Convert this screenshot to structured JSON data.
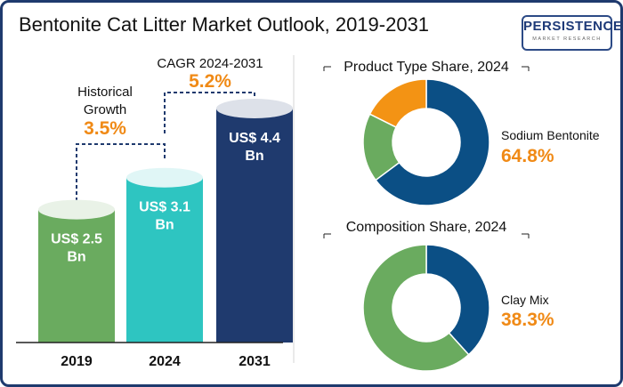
{
  "title": "Bentonite Cat Litter Market Outlook, 2019-2031",
  "logo": {
    "word": "PERSISTENCE",
    "tagline": "MARKET RESEARCH"
  },
  "colors": {
    "orange": "#f08a16",
    "navy": "#1f3a6e",
    "green": "#6aab5f",
    "teal": "#2ec5c1",
    "blue": "#0b4f85",
    "donut_orange": "#f39314"
  },
  "annotations": {
    "historical_label": "Historical Growth",
    "historical_value": "3.5%",
    "cagr_label": "CAGR 2024-2031",
    "cagr_value": "5.2%"
  },
  "chart_data": [
    {
      "type": "bar",
      "title": "",
      "categories": [
        "2019",
        "2024",
        "2031"
      ],
      "values": [
        2.5,
        3.1,
        4.4
      ],
      "value_labels": [
        "US$ 2.5 Bn",
        "US$ 3.1 Bn",
        "US$ 4.4 Bn"
      ],
      "colors": [
        "#6aab5f",
        "#2ec5c1",
        "#1f3a6e"
      ],
      "ylim": [
        0,
        4.4
      ]
    },
    {
      "type": "pie",
      "title": "Product Type Share, 2024",
      "slices": [
        {
          "label": "Sodium Bentonite",
          "value": 64.8,
          "color": "#0b4f85"
        },
        {
          "label": "",
          "value": 17.6,
          "color": "#6aab5f"
        },
        {
          "label": "",
          "value": 17.6,
          "color": "#f39314"
        }
      ],
      "highlight_label": "Sodium Bentonite",
      "highlight_value": "64.8%"
    },
    {
      "type": "pie",
      "title": "Composition Share, 2024",
      "slices": [
        {
          "label": "Clay Mix",
          "value": 38.3,
          "color": "#0b4f85"
        },
        {
          "label": "",
          "value": 61.7,
          "color": "#6aab5f"
        }
      ],
      "highlight_label": "Clay Mix",
      "highlight_value": "38.3%"
    }
  ]
}
